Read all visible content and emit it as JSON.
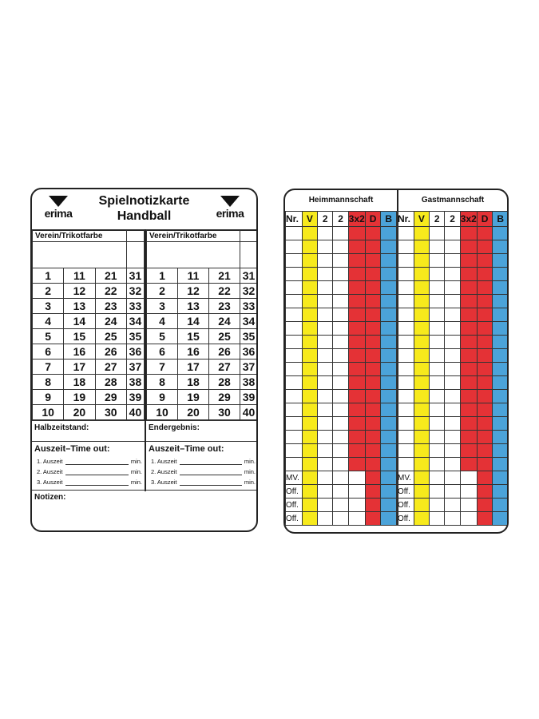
{
  "left_card": {
    "brand": "erima",
    "title_line1": "Spielnotizkarte",
    "title_line2": "Handball",
    "team_label": "Verein/Trikotfarbe",
    "numbers": [
      [
        1,
        11,
        21,
        31
      ],
      [
        2,
        12,
        22,
        32
      ],
      [
        3,
        13,
        23,
        33
      ],
      [
        4,
        14,
        24,
        34
      ],
      [
        5,
        15,
        25,
        35
      ],
      [
        6,
        16,
        26,
        36
      ],
      [
        7,
        17,
        27,
        37
      ],
      [
        8,
        18,
        28,
        38
      ],
      [
        9,
        19,
        29,
        39
      ],
      [
        10,
        20,
        30,
        40
      ]
    ],
    "halftime_label": "Halbzeitstand:",
    "final_label": "Endergebnis:",
    "timeout_title": "Auszeit–Time out:",
    "timeouts": [
      "1. Auszeit",
      "2. Auszeit",
      "3. Auszeit"
    ],
    "min_label": "min.",
    "notes_label": "Notizen:"
  },
  "right_card": {
    "teams": [
      "Heimmannschaft",
      "Gastmannschaft"
    ],
    "columns": [
      "Nr.",
      "V",
      "2",
      "2",
      "3x2",
      "D",
      "B"
    ],
    "player_rows": 18,
    "official_rows": [
      "MV.",
      "Off.",
      "Off.",
      "Off."
    ],
    "colors": {
      "V": "#f7ea1c",
      "red": "#e43236",
      "B": "#4ba3d9"
    }
  }
}
